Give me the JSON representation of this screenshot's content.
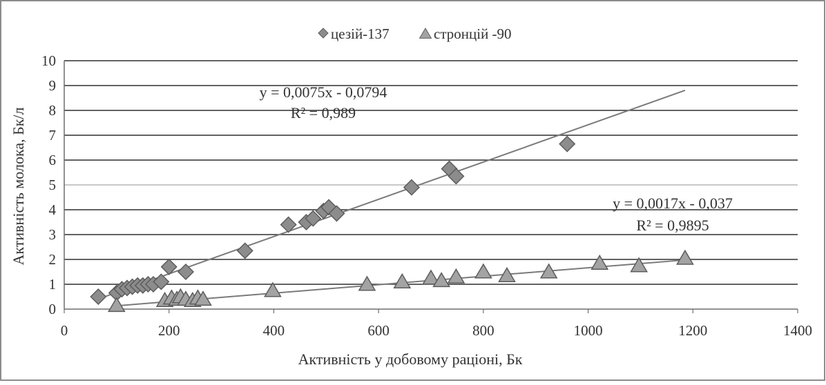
{
  "chart_data": {
    "type": "scatter",
    "title": "",
    "xlabel": "Активність у добовому раціоні, Бк",
    "ylabel": "Активність молока, Бк/л",
    "xlim": [
      0,
      1400
    ],
    "ylim": [
      0,
      10
    ],
    "x_ticks": [
      "0",
      "200",
      "400",
      "600",
      "800",
      "1000",
      "1200",
      "1400"
    ],
    "y_ticks": [
      "0",
      "1",
      "2",
      "3",
      "4",
      "5",
      "6",
      "7",
      "8",
      "9",
      "10"
    ],
    "grid": "horizontal",
    "legend_position": "top",
    "series": [
      {
        "name": "цезій-137",
        "marker": "diamond",
        "color": "#8a8a8a",
        "points": [
          [
            65,
            0.5
          ],
          [
            100,
            0.65
          ],
          [
            110,
            0.8
          ],
          [
            120,
            0.85
          ],
          [
            130,
            0.9
          ],
          [
            140,
            0.95
          ],
          [
            150,
            0.95
          ],
          [
            160,
            1.0
          ],
          [
            170,
            1.0
          ],
          [
            185,
            1.1
          ],
          [
            200,
            1.7
          ],
          [
            232,
            1.5
          ],
          [
            345,
            2.35
          ],
          [
            428,
            3.4
          ],
          [
            462,
            3.5
          ],
          [
            475,
            3.65
          ],
          [
            495,
            3.95
          ],
          [
            505,
            4.1
          ],
          [
            520,
            3.85
          ],
          [
            663,
            4.9
          ],
          [
            735,
            5.65
          ],
          [
            748,
            5.35
          ],
          [
            960,
            6.65
          ]
        ],
        "trendline": {
          "equation": "y = 0,0075x - 0,0794",
          "r2": "R² = 0,989",
          "slope": 0.0075,
          "intercept": -0.0794,
          "x_range": [
            60,
            1185
          ]
        }
      },
      {
        "name": "стронцій -90",
        "marker": "triangle",
        "color": "#999999",
        "points": [
          [
            100,
            0.15
          ],
          [
            192,
            0.35
          ],
          [
            205,
            0.45
          ],
          [
            215,
            0.4
          ],
          [
            222,
            0.5
          ],
          [
            232,
            0.4
          ],
          [
            245,
            0.35
          ],
          [
            255,
            0.45
          ],
          [
            265,
            0.4
          ],
          [
            398,
            0.75
          ],
          [
            578,
            1.0
          ],
          [
            645,
            1.1
          ],
          [
            700,
            1.25
          ],
          [
            720,
            1.15
          ],
          [
            748,
            1.3
          ],
          [
            800,
            1.5
          ],
          [
            845,
            1.35
          ],
          [
            925,
            1.5
          ],
          [
            1022,
            1.85
          ],
          [
            1097,
            1.75
          ],
          [
            1185,
            2.05
          ]
        ],
        "trendline": {
          "equation": "y = 0,0017x - 0,037",
          "r2": "R² = 0,9895",
          "slope": 0.0017,
          "intercept": -0.037,
          "x_range": [
            100,
            1185
          ]
        }
      }
    ]
  }
}
